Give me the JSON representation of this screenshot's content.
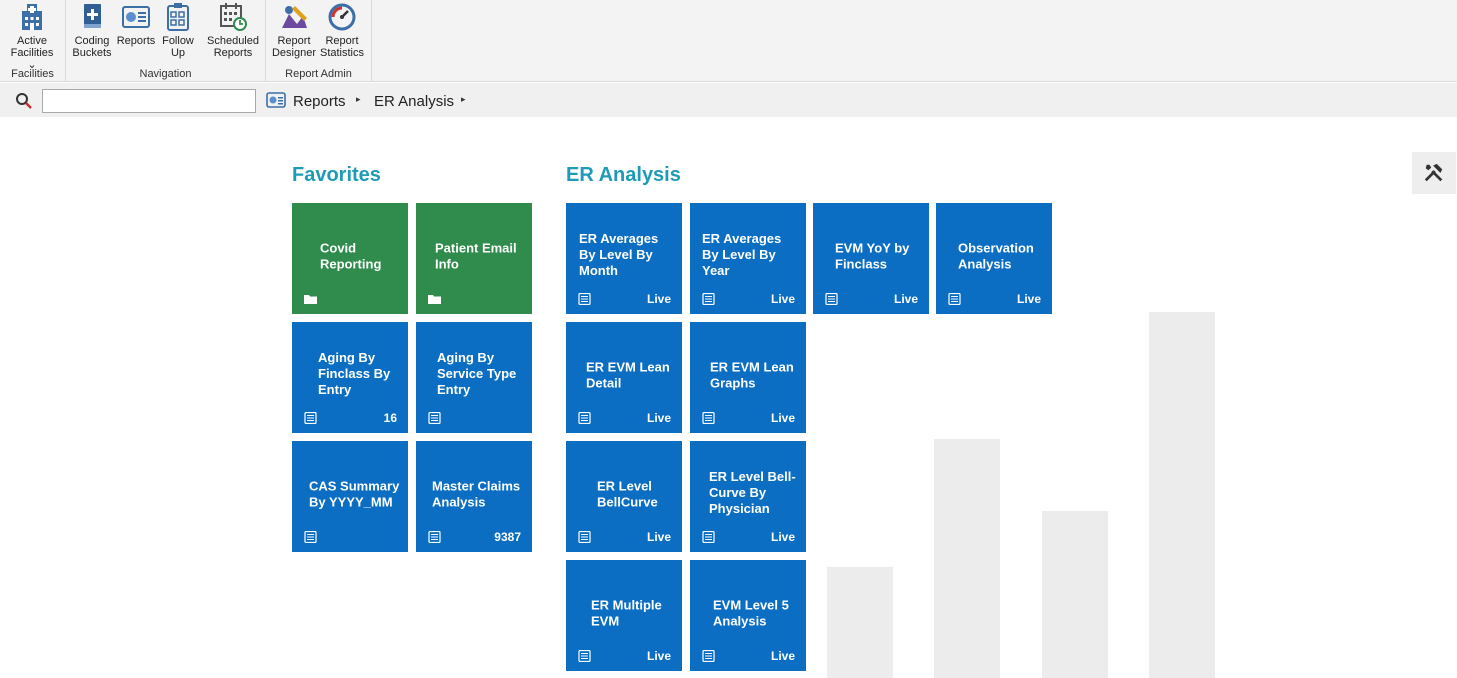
{
  "ribbon": {
    "groups": [
      {
        "label": "Facilities",
        "buttons": [
          {
            "label": "Active\nFacilities ⌄",
            "icon": "hospital-icon"
          }
        ]
      },
      {
        "label": "Navigation",
        "buttons": [
          {
            "label": "Coding\nBuckets",
            "icon": "coding-buckets-icon"
          },
          {
            "label": "Reports",
            "icon": "reports-icon"
          },
          {
            "label": "Follow\nUp",
            "icon": "follow-up-icon"
          },
          {
            "label": "Scheduled\nReports",
            "icon": "scheduled-reports-icon"
          }
        ]
      },
      {
        "label": "Report Admin",
        "buttons": [
          {
            "label": "Report\nDesigner",
            "icon": "report-designer-icon"
          },
          {
            "label": "Report\nStatistics",
            "icon": "report-statistics-icon"
          }
        ]
      }
    ]
  },
  "address": {
    "search_value": "",
    "breadcrumbs": [
      "Reports",
      "ER Analysis"
    ]
  },
  "favorites": {
    "title": "Favorites",
    "tiles": [
      {
        "title": "Covid Reporting",
        "color": "green",
        "icon": "folder-icon",
        "badge": ""
      },
      {
        "title": "Patient Email Info",
        "color": "green",
        "icon": "folder-icon",
        "badge": ""
      },
      {
        "title": "Aging By Finclass By Entry",
        "color": "blue",
        "icon": "report-icon",
        "badge": "16"
      },
      {
        "title": "Aging By Service Type Entry",
        "color": "blue",
        "icon": "report-icon",
        "badge": ""
      },
      {
        "title": "CAS Summary By YYYY_MM",
        "color": "blue",
        "icon": "report-icon",
        "badge": ""
      },
      {
        "title": "Master Claims Analysis",
        "color": "blue",
        "icon": "report-icon",
        "badge": "9387"
      }
    ]
  },
  "er_analysis": {
    "title": "ER Analysis",
    "tiles": [
      {
        "title": "ER Averages By Level By Month",
        "badge": "Live"
      },
      {
        "title": "ER Averages By Level By Year",
        "badge": "Live"
      },
      {
        "title": "EVM YoY by Finclass",
        "badge": "Live"
      },
      {
        "title": "Observation Analysis",
        "badge": "Live"
      },
      {
        "title": "ER EVM Lean Detail",
        "badge": "Live"
      },
      {
        "title": "ER EVM Lean Graphs",
        "badge": "Live"
      },
      {
        "title": "ER Level BellCurve",
        "badge": "Live"
      },
      {
        "title": "ER Level Bell-Curve By Physician",
        "badge": "Live"
      },
      {
        "title": "ER Multiple EVM",
        "badge": "Live"
      },
      {
        "title": "EVM Level 5 Analysis",
        "badge": "Live"
      }
    ]
  },
  "colors": {
    "tile_blue": "#0b6ec3",
    "tile_green": "#2f8c4d",
    "section_title": "#1f9bb8"
  }
}
